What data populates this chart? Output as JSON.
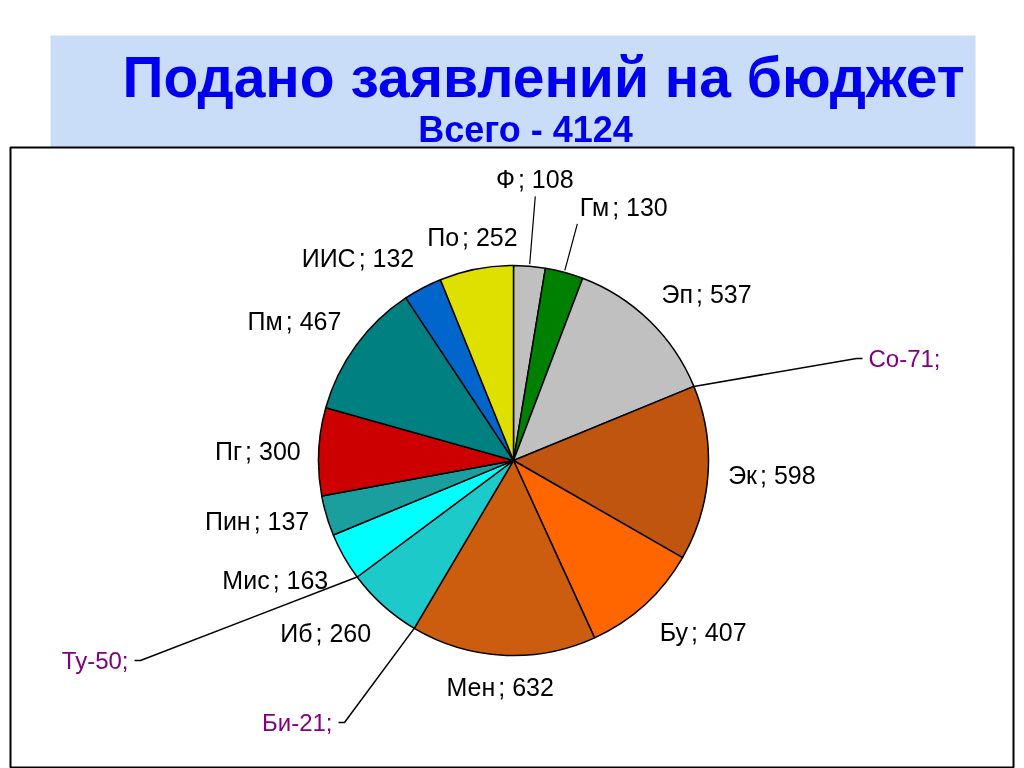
{
  "chart_data": {
    "type": "pie",
    "title": "Подано заявлений на бюджет",
    "subtitle": "Всего - 4124",
    "categories": [
      "Ф",
      "Гм",
      "Эп",
      "Эк",
      "Бу",
      "Мен",
      "Иб",
      "Мис",
      "Пин",
      "Пг",
      "Пм",
      "ИИС",
      "По"
    ],
    "values": [
      108,
      130,
      537,
      598,
      407,
      632,
      260,
      163,
      137,
      300,
      467,
      132,
      252
    ],
    "value_labels": [
      "; 108",
      "; 130",
      "; 537",
      "; 598",
      "; 407",
      "; 632",
      "; 260",
      "; 163",
      "; 137",
      "; 300",
      "; 467",
      "; 132",
      "; 252"
    ],
    "colors": [
      "#c0c0c0",
      "#008000",
      "#c0c0c0",
      "#c05510",
      "#ff6600",
      "#cc5c0e",
      "#1ccaca",
      "#00ffff",
      "#1a9e9e",
      "#cc0000",
      "#008080",
      "#0066cc",
      "#e0e000"
    ],
    "annotations": [
      "Со-71;",
      "Ту-50;",
      "Би-21;"
    ]
  }
}
